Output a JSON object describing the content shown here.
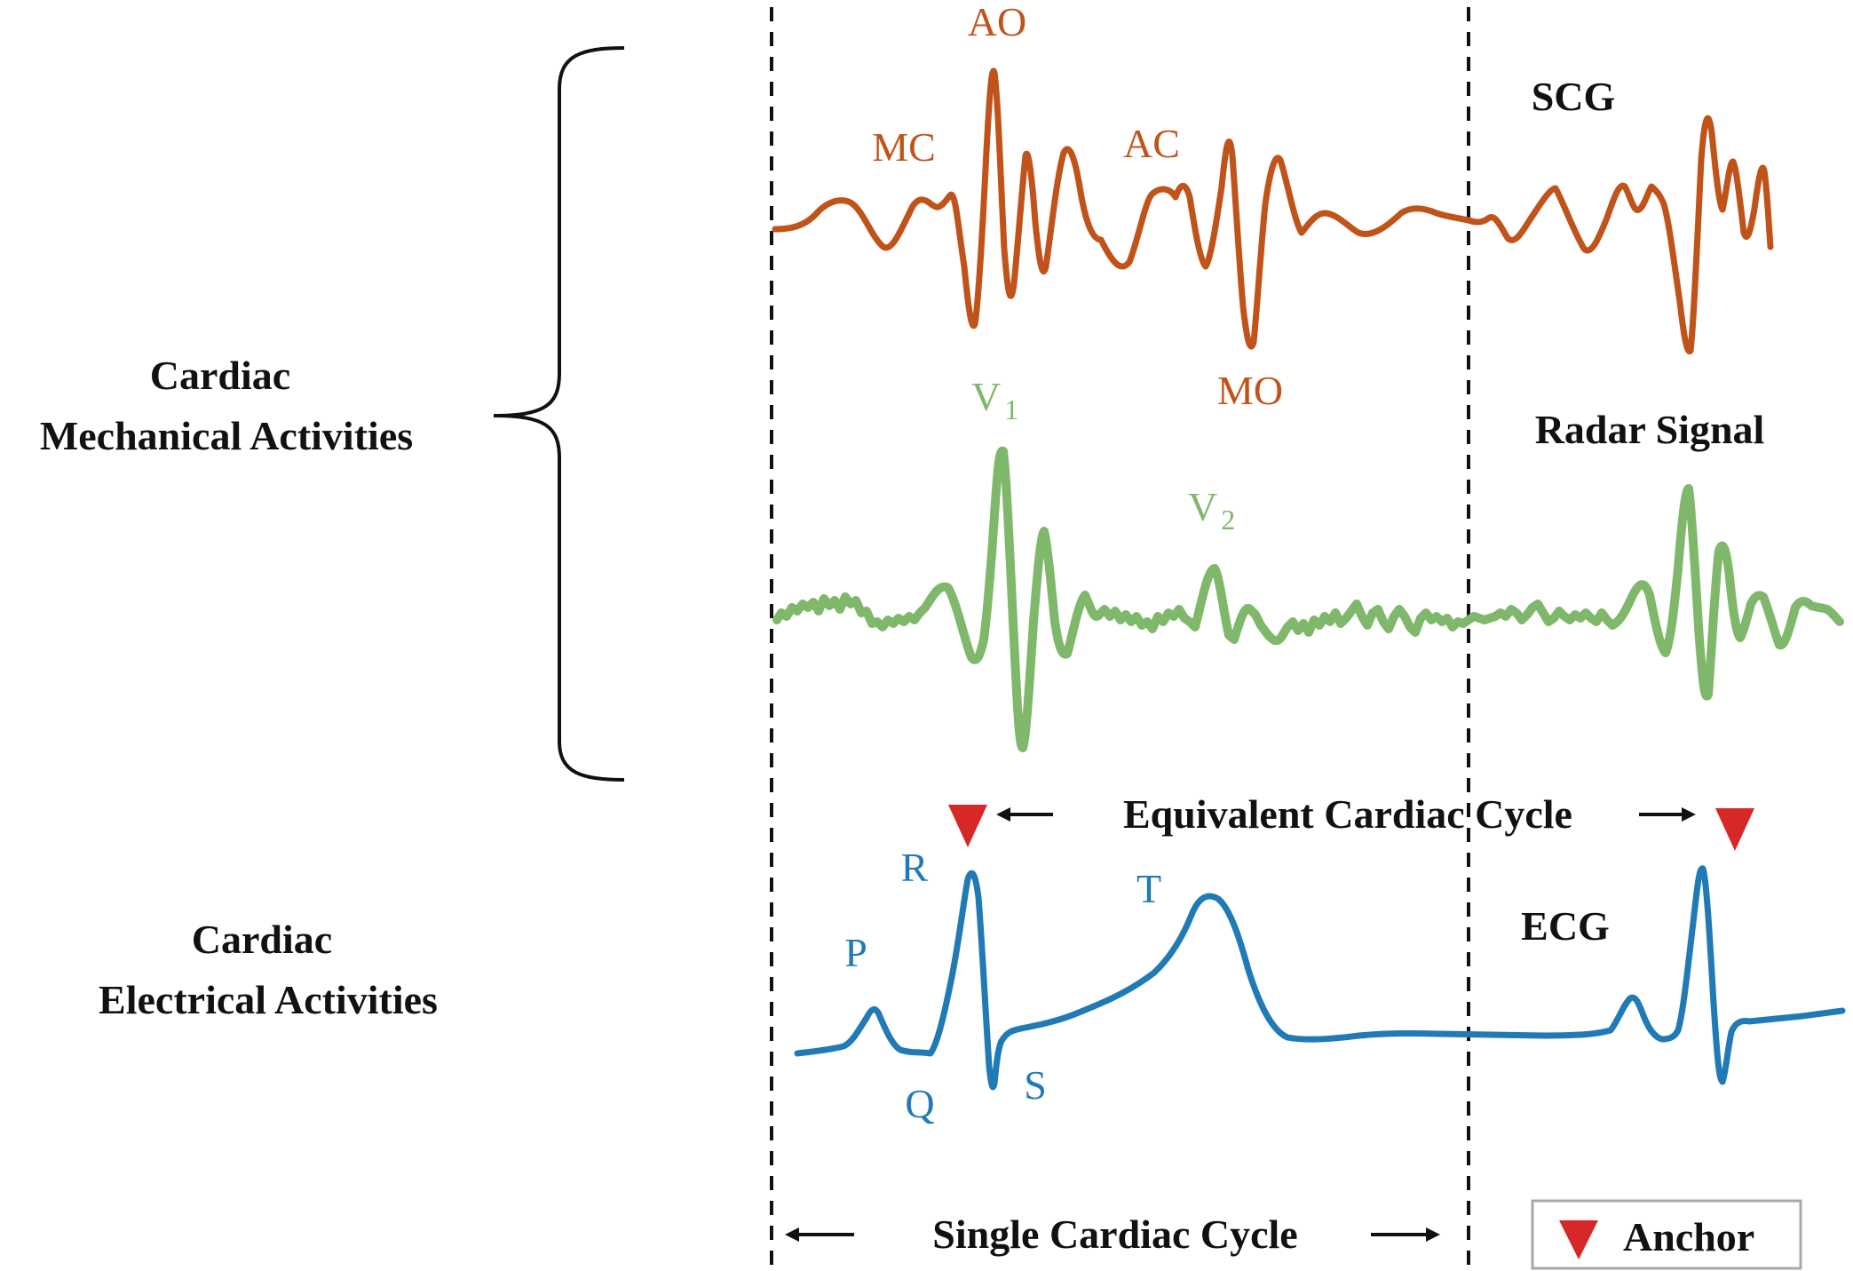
{
  "group_labels": {
    "mechanical_line1": "Cardiac",
    "mechanical_line2": "Mechanical Activities",
    "electrical_line1": "Cardiac",
    "electrical_line2": "Electrical Activities"
  },
  "signals": {
    "scg": {
      "name": "SCG",
      "color": "#C0531A",
      "points": {
        "mc": "MC",
        "ao": "AO",
        "ac": "AC",
        "mo": "MO"
      }
    },
    "radar": {
      "name": "Radar Signal",
      "color": "#7FB86A",
      "points": {
        "v1": "V",
        "v1_sub": "1",
        "v2": "V",
        "v2_sub": "2"
      }
    },
    "ecg": {
      "name": "ECG",
      "color": "#1F7AB5",
      "points": {
        "p": "P",
        "q": "Q",
        "r": "R",
        "s": "S",
        "t": "T"
      }
    }
  },
  "annotations": {
    "equivalent_cycle": "Equivalent Cardiac Cycle",
    "single_cycle": "Single Cardiac Cycle"
  },
  "legend": {
    "anchor_label": "Anchor",
    "anchor_color": "#D62828"
  }
}
